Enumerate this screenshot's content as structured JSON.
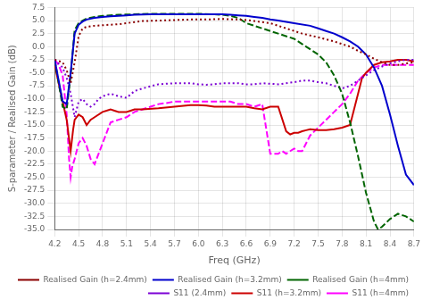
{
  "chart_data": {
    "type": "line",
    "xlabel": "Freq (GHz)",
    "ylabel": "S-parameter / Realised Gain (dB)",
    "xlim": [
      4.2,
      8.7
    ],
    "ylim": [
      -35,
      7.5
    ],
    "xticks": [
      4.2,
      4.5,
      4.8,
      5.1,
      5.4,
      5.7,
      {
        "value": 6.0,
        "label": "6.0"
      },
      6.3,
      6.6,
      6.9,
      7.2,
      7.5,
      7.8,
      8.1,
      8.4,
      8.7
    ],
    "yticks": [
      7.5,
      {
        "value": 5.0,
        "label": "5.0"
      },
      2.5,
      {
        "value": 0.0,
        "label": "0.0"
      },
      -2.5,
      {
        "value": -5.0,
        "label": "-5.0"
      },
      -7.5,
      {
        "value": -10.0,
        "label": "-10.0"
      },
      -12.5,
      {
        "value": -15.0,
        "label": "-15.0"
      },
      -17.5,
      {
        "value": -20.0,
        "label": "-20.0"
      },
      -22.5,
      {
        "value": -25.0,
        "label": "-25.0"
      },
      -27.5,
      {
        "value": -30.0,
        "label": "-30.0"
      },
      -32.5,
      {
        "value": -35.0,
        "label": "-35.0"
      }
    ],
    "grid": true,
    "legend": "lower right",
    "series": [
      {
        "name": "Realised Gain (h=2.4mm)",
        "color": "#8B0000",
        "line_style": "dotted",
        "x": [
          4.2,
          4.3,
          4.35,
          4.4,
          4.45,
          4.5,
          4.55,
          4.6,
          4.7,
          4.8,
          4.9,
          5.0,
          5.1,
          5.2,
          5.3,
          5.5,
          5.7,
          5.9,
          6.1,
          6.3,
          6.5,
          6.6,
          6.7,
          6.9,
          7.1,
          7.2,
          7.3,
          7.5,
          7.7,
          7.9,
          8.0,
          8.1,
          8.2,
          8.3,
          8.4,
          8.5,
          8.6,
          8.7
        ],
        "values": [
          -2.5,
          -3.0,
          -4.5,
          -7.0,
          -3.0,
          2.0,
          3.5,
          3.8,
          4.0,
          4.1,
          4.2,
          4.3,
          4.5,
          4.7,
          4.9,
          5.0,
          5.1,
          5.2,
          5.2,
          5.3,
          5.2,
          5.1,
          4.9,
          4.5,
          3.5,
          3.0,
          2.5,
          1.8,
          1.0,
          0.0,
          -0.8,
          -1.5,
          -2.3,
          -3.0,
          -3.5,
          -3.5,
          -3.2,
          -3.0
        ]
      },
      {
        "name": "Realised Gain (h=3.2mm)",
        "color": "#0000CD",
        "line_style": "solid",
        "x": [
          4.2,
          4.3,
          4.35,
          4.4,
          4.45,
          4.5,
          4.55,
          4.6,
          4.7,
          4.8,
          4.9,
          5.0,
          5.1,
          5.2,
          5.4,
          5.6,
          5.8,
          6.0,
          6.2,
          6.3,
          6.4,
          6.5,
          6.6,
          6.7,
          6.8,
          6.9,
          7.0,
          7.2,
          7.4,
          7.5,
          7.6,
          7.7,
          7.8,
          7.9,
          8.0,
          8.1,
          8.2,
          8.3,
          8.4,
          8.5,
          8.6,
          8.7
        ],
        "values": [
          -2.5,
          -10.5,
          -11.0,
          -5.0,
          2.5,
          4.2,
          4.8,
          5.2,
          5.5,
          5.7,
          5.8,
          5.9,
          6.0,
          6.1,
          6.2,
          6.2,
          6.2,
          6.2,
          6.2,
          6.2,
          6.1,
          6.0,
          5.9,
          5.7,
          5.5,
          5.2,
          5.0,
          4.5,
          4.0,
          3.5,
          3.0,
          2.5,
          1.8,
          1.0,
          0.0,
          -1.5,
          -4.0,
          -7.5,
          -13.0,
          -19.0,
          -24.5,
          -26.5
        ]
      },
      {
        "name": "Realised Gain (h=4mm)",
        "color": "#006400",
        "line_style": "dashed",
        "x": [
          4.2,
          4.3,
          4.35,
          4.4,
          4.45,
          4.5,
          4.55,
          4.6,
          4.7,
          4.8,
          5.0,
          5.2,
          5.4,
          5.6,
          5.8,
          6.0,
          6.2,
          6.3,
          6.4,
          6.5,
          6.55,
          6.6,
          6.7,
          6.8,
          7.0,
          7.2,
          7.3,
          7.4,
          7.5,
          7.6,
          7.7,
          7.8,
          7.9,
          8.0,
          8.1,
          8.2,
          8.25,
          8.3,
          8.4,
          8.5,
          8.6,
          8.7
        ],
        "values": [
          -2.5,
          -11.5,
          -12.0,
          -5.5,
          3.2,
          4.5,
          5.0,
          5.4,
          5.7,
          5.9,
          6.1,
          6.2,
          6.3,
          6.3,
          6.3,
          6.3,
          6.2,
          6.1,
          5.9,
          5.5,
          5.0,
          4.5,
          4.0,
          3.5,
          2.5,
          1.5,
          0.5,
          -0.5,
          -1.5,
          -3.0,
          -5.5,
          -9.0,
          -14.5,
          -21.0,
          -28.0,
          -33.5,
          -35.0,
          -34.5,
          -33.0,
          -32.0,
          -32.5,
          -33.5
        ]
      },
      {
        "name": "S11 (2.4mm)",
        "color": "#7B00D4",
        "line_style": "dotted",
        "x": [
          4.2,
          4.3,
          4.35,
          4.4,
          4.45,
          4.5,
          4.55,
          4.6,
          4.65,
          4.7,
          4.75,
          4.8,
          4.9,
          5.0,
          5.1,
          5.2,
          5.3,
          5.5,
          5.7,
          5.9,
          6.0,
          6.1,
          6.2,
          6.3,
          6.4,
          6.5,
          6.6,
          6.7,
          6.8,
          7.0,
          7.2,
          7.3,
          7.4,
          7.5,
          7.6,
          7.7,
          7.8,
          7.9,
          8.0,
          8.1,
          8.2,
          8.3,
          8.4,
          8.5,
          8.6,
          8.7
        ],
        "values": [
          -2.5,
          -4.0,
          -6.0,
          -9.0,
          -13.5,
          -10.5,
          -10.0,
          -11.0,
          -11.5,
          -11.0,
          -10.0,
          -9.5,
          -9.0,
          -9.5,
          -9.8,
          -8.5,
          -8.0,
          -7.2,
          -7.0,
          -7.0,
          -7.2,
          -7.3,
          -7.2,
          -7.0,
          -7.0,
          -7.0,
          -7.2,
          -7.2,
          -7.0,
          -7.2,
          -6.8,
          -6.5,
          -6.5,
          -6.8,
          -7.0,
          -7.5,
          -8.0,
          -7.5,
          -6.5,
          -5.5,
          -4.5,
          -3.8,
          -3.2,
          -2.8,
          -2.5,
          -2.5
        ]
      },
      {
        "name": "S11 (h=3.2mm)",
        "color": "#CC0000",
        "line_style": "solid",
        "x": [
          4.2,
          4.3,
          4.35,
          4.4,
          4.43,
          4.45,
          4.5,
          4.55,
          4.6,
          4.65,
          4.7,
          4.8,
          4.9,
          5.0,
          5.1,
          5.2,
          5.3,
          5.5,
          5.7,
          5.9,
          6.0,
          6.1,
          6.2,
          6.3,
          6.4,
          6.5,
          6.6,
          6.7,
          6.8,
          6.9,
          7.0,
          7.1,
          7.15,
          7.2,
          7.25,
          7.3,
          7.35,
          7.4,
          7.5,
          7.6,
          7.7,
          7.8,
          7.9,
          8.0,
          8.05,
          8.1,
          8.2,
          8.3,
          8.4,
          8.5,
          8.6,
          8.7
        ],
        "values": [
          -3.5,
          -10.5,
          -14.0,
          -20.0,
          -16.0,
          -14.0,
          -13.0,
          -13.5,
          -15.0,
          -14.0,
          -13.5,
          -12.5,
          -12.0,
          -12.5,
          -12.5,
          -12.0,
          -12.0,
          -11.8,
          -11.5,
          -11.2,
          -11.2,
          -11.3,
          -11.5,
          -11.5,
          -11.5,
          -11.5,
          -11.5,
          -11.8,
          -12.0,
          -11.5,
          -11.5,
          -16.2,
          -16.8,
          -16.5,
          -16.5,
          -16.2,
          -16.0,
          -15.8,
          -16.0,
          -16.0,
          -15.8,
          -15.5,
          -15.0,
          -9.0,
          -6.0,
          -5.0,
          -3.5,
          -3.0,
          -2.8,
          -2.5,
          -2.5,
          -2.8
        ]
      },
      {
        "name": "S11 (h=4mm)",
        "color": "#FF00FF",
        "line_style": "dashed",
        "x": [
          4.2,
          4.25,
          4.3,
          4.35,
          4.38,
          4.4,
          4.42,
          4.45,
          4.5,
          4.55,
          4.6,
          4.65,
          4.7,
          4.8,
          4.9,
          5.0,
          5.1,
          5.2,
          5.3,
          5.4,
          5.5,
          5.6,
          5.7,
          5.8,
          5.9,
          6.0,
          6.1,
          6.2,
          6.3,
          6.4,
          6.5,
          6.6,
          6.7,
          6.8,
          6.9,
          7.0,
          7.05,
          7.1,
          7.15,
          7.2,
          7.25,
          7.3,
          7.4,
          7.5,
          7.6,
          7.7,
          7.8,
          7.9,
          8.0,
          8.1,
          8.2,
          8.3,
          8.4,
          8.5,
          8.6,
          8.7
        ],
        "values": [
          -2.5,
          -3.5,
          -5.5,
          -13.0,
          -21.5,
          -25.0,
          -23.0,
          -21.5,
          -18.5,
          -17.5,
          -19.0,
          -21.5,
          -22.5,
          -18.5,
          -14.5,
          -14.0,
          -13.5,
          -12.5,
          -12.0,
          -11.5,
          -11.0,
          -10.8,
          -10.5,
          -10.5,
          -10.5,
          -10.5,
          -10.5,
          -10.5,
          -10.5,
          -10.5,
          -11.0,
          -11.0,
          -11.5,
          -11.0,
          -20.5,
          -20.5,
          -20.0,
          -20.5,
          -20.0,
          -19.5,
          -20.0,
          -20.0,
          -17.0,
          -15.5,
          -14.0,
          -12.5,
          -11.0,
          -9.0,
          -6.5,
          -5.0,
          -4.0,
          -3.5,
          -3.5,
          -3.5,
          -3.5,
          -3.5
        ]
      }
    ]
  }
}
